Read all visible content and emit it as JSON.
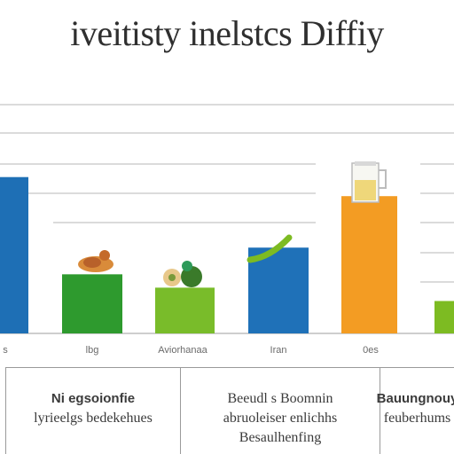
{
  "chart_data": {
    "type": "bar",
    "title": "iveitisty inelstcs Diffiy",
    "xlabel": "",
    "ylabel": "",
    "ylim": [
      0,
      6
    ],
    "grid": true,
    "legend": "none",
    "categories": [
      "s",
      "lbg",
      "Aviorhanaa",
      "Iran",
      "0es"
    ],
    "values": [
      4.1,
      1.55,
      1.2,
      2.25,
      3.6
    ],
    "extra_bar": {
      "value": 0.85,
      "color": "#7dbb22"
    },
    "colors": [
      "#1e6fb5",
      "#2e9a2e",
      "#79bc2a",
      "#1f71b8",
      "#f39c23"
    ],
    "icons": [
      "none",
      "snack-icon",
      "fruit-icon",
      "leaf-icon",
      "juice-jar-icon"
    ]
  },
  "panels": [
    {
      "lines": [
        "Ni egsoionfie",
        "lyrieelgs bedekehues"
      ]
    },
    {
      "lines": [
        "Beeudl s Boomnin",
        "abruoleiser enlichhs",
        "Besaulhenfing"
      ]
    },
    {
      "lines": [
        "Bauungnouy",
        "feuberhums"
      ]
    }
  ]
}
